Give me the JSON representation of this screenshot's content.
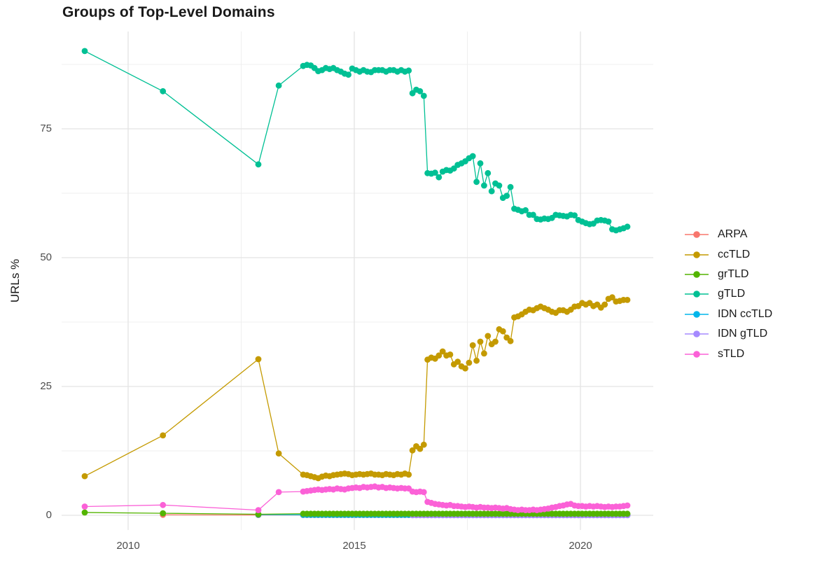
{
  "title": "Groups of Top-Level Domains",
  "colors": {
    "background": "#ffffff",
    "grid_major": "#e3e3e3",
    "grid_minor": "#efefef",
    "tick_label": "#4d4d4d",
    "text": "#191919"
  },
  "chart_data": {
    "type": "line",
    "title": "Groups of Top-Level Domains",
    "xlabel": "",
    "ylabel": "URLs %",
    "xlim": [
      2008.53,
      2021.65
    ],
    "ylim": [
      -2.85,
      93.9
    ],
    "x_tick_labels": [
      "2010",
      "2015",
      "2020"
    ],
    "x_ticks": [
      2010,
      2015,
      2020
    ],
    "x_minor_ticks": [
      2012.5,
      2017.5
    ],
    "y_tick_labels": [
      "0",
      "25",
      "50",
      "75"
    ],
    "y_ticks": [
      0,
      25,
      50,
      75
    ],
    "y_minor_ticks": [
      12.5,
      37.5,
      62.5,
      87.5
    ],
    "grid": "major+minor",
    "legend_position": "right",
    "marker": "point",
    "series": [
      {
        "name": "ARPA",
        "color": "#F8766D",
        "early": [
          [
            2010.77,
            0.1
          ],
          [
            2012.88,
            0.06
          ]
        ],
        "monthly": {
          "x_start": 2013.87,
          "x_step": 0.08333,
          "fill": 0.05,
          "count": 87
        }
      },
      {
        "name": "ccTLD",
        "color": "#C49A00",
        "early": [
          [
            2009.04,
            7.6
          ],
          [
            2010.77,
            15.5
          ],
          [
            2012.88,
            30.3
          ],
          [
            2013.33,
            12.0
          ]
        ],
        "monthly": {
          "x_start": 2013.87,
          "x_step": 0.08333,
          "y": [
            7.9,
            7.8,
            7.6,
            7.4,
            7.2,
            7.5,
            7.7,
            7.6,
            7.8,
            7.9,
            8.0,
            8.1,
            8.0,
            7.8,
            7.9,
            8.0,
            7.9,
            8.0,
            8.1,
            7.9,
            7.9,
            7.8,
            8.0,
            7.9,
            7.8,
            8.0,
            7.9,
            8.1,
            7.9,
            12.6,
            13.4,
            12.9,
            13.7,
            30.2,
            30.6,
            30.4,
            31.0,
            31.8,
            31.0,
            31.2,
            29.3,
            29.8,
            28.9,
            28.5,
            29.6,
            33.0,
            30.0,
            33.7,
            31.4,
            34.8,
            33.2,
            33.7,
            36.1,
            35.7,
            34.5,
            33.8,
            38.4,
            38.6,
            39.0,
            39.5,
            39.9,
            39.8,
            40.2,
            40.5,
            40.2,
            39.9,
            39.5,
            39.3,
            39.8,
            39.8,
            39.5,
            39.9,
            40.5,
            40.6,
            41.2,
            40.9,
            41.2,
            40.6,
            40.9,
            40.3,
            40.9,
            42.0,
            42.3,
            41.5,
            41.6,
            41.8,
            41.8
          ]
        }
      },
      {
        "name": "grTLD",
        "color": "#53B400",
        "early": [
          [
            2009.04,
            0.55
          ],
          [
            2010.77,
            0.4
          ],
          [
            2012.88,
            0.2
          ]
        ],
        "monthly": {
          "x_start": 2013.87,
          "x_step": 0.08333,
          "fill": 0.3,
          "count": 87
        }
      },
      {
        "name": "gTLD",
        "color": "#00C094",
        "early": [
          [
            2009.04,
            90.1
          ],
          [
            2010.77,
            82.3
          ],
          [
            2012.88,
            68.1
          ],
          [
            2013.33,
            83.4
          ]
        ],
        "monthly": {
          "x_start": 2013.87,
          "x_step": 0.08333,
          "y": [
            87.2,
            87.4,
            87.3,
            86.8,
            86.2,
            86.4,
            86.8,
            86.6,
            86.8,
            86.4,
            86.1,
            85.7,
            85.5,
            86.7,
            86.4,
            86.1,
            86.4,
            86.1,
            86.0,
            86.4,
            86.4,
            86.4,
            86.1,
            86.4,
            86.4,
            86.1,
            86.4,
            86.1,
            86.3,
            81.9,
            82.6,
            82.3,
            81.4,
            66.4,
            66.3,
            66.5,
            65.6,
            66.7,
            67.0,
            66.9,
            67.3,
            68.0,
            68.3,
            68.7,
            69.3,
            69.7,
            64.7,
            68.3,
            64.0,
            66.4,
            62.9,
            64.4,
            64.0,
            61.6,
            62.0,
            63.7,
            59.5,
            59.3,
            59.0,
            59.2,
            58.3,
            58.3,
            57.5,
            57.4,
            57.6,
            57.5,
            57.7,
            58.3,
            58.2,
            58.1,
            58.0,
            58.3,
            58.2,
            57.3,
            57.0,
            56.7,
            56.5,
            56.6,
            57.2,
            57.3,
            57.2,
            57.0,
            55.5,
            55.3,
            55.5,
            55.7,
            56.0
          ]
        }
      },
      {
        "name": "IDN ccTLD",
        "color": "#00B6EB",
        "early": [
          [
            2012.88,
            0.12
          ]
        ],
        "monthly": {
          "x_start": 2013.87,
          "x_step": 0.08333,
          "fill": 0.08,
          "count": 87
        }
      },
      {
        "name": "IDN gTLD",
        "color": "#A58AFF",
        "early": [],
        "monthly": {
          "x_start": 2016.29,
          "x_step": 0.08333,
          "fill": 0.02,
          "count": 58
        }
      },
      {
        "name": "sTLD",
        "color": "#FB61D7",
        "early": [
          [
            2009.04,
            1.7
          ],
          [
            2010.77,
            2.0
          ],
          [
            2012.88,
            1.0
          ],
          [
            2013.33,
            4.5
          ]
        ],
        "monthly": {
          "x_start": 2013.87,
          "x_step": 0.08333,
          "y": [
            4.6,
            4.7,
            4.8,
            4.9,
            5.0,
            4.9,
            5.0,
            5.1,
            5.0,
            5.2,
            5.1,
            5.0,
            5.2,
            5.3,
            5.4,
            5.3,
            5.5,
            5.4,
            5.5,
            5.6,
            5.4,
            5.5,
            5.3,
            5.4,
            5.3,
            5.2,
            5.3,
            5.2,
            5.2,
            4.6,
            4.5,
            4.6,
            4.5,
            2.6,
            2.4,
            2.2,
            2.1,
            2.0,
            1.9,
            2.0,
            1.8,
            1.8,
            1.7,
            1.6,
            1.7,
            1.6,
            1.5,
            1.6,
            1.5,
            1.5,
            1.4,
            1.5,
            1.4,
            1.3,
            1.4,
            1.2,
            1.1,
            1.0,
            1.1,
            1.0,
            1.0,
            1.1,
            1.0,
            1.1,
            1.2,
            1.3,
            1.5,
            1.6,
            1.8,
            1.9,
            2.1,
            2.2,
            1.9,
            1.8,
            1.8,
            1.7,
            1.8,
            1.7,
            1.8,
            1.7,
            1.6,
            1.7,
            1.6,
            1.7,
            1.7,
            1.8,
            1.9
          ]
        }
      }
    ]
  }
}
